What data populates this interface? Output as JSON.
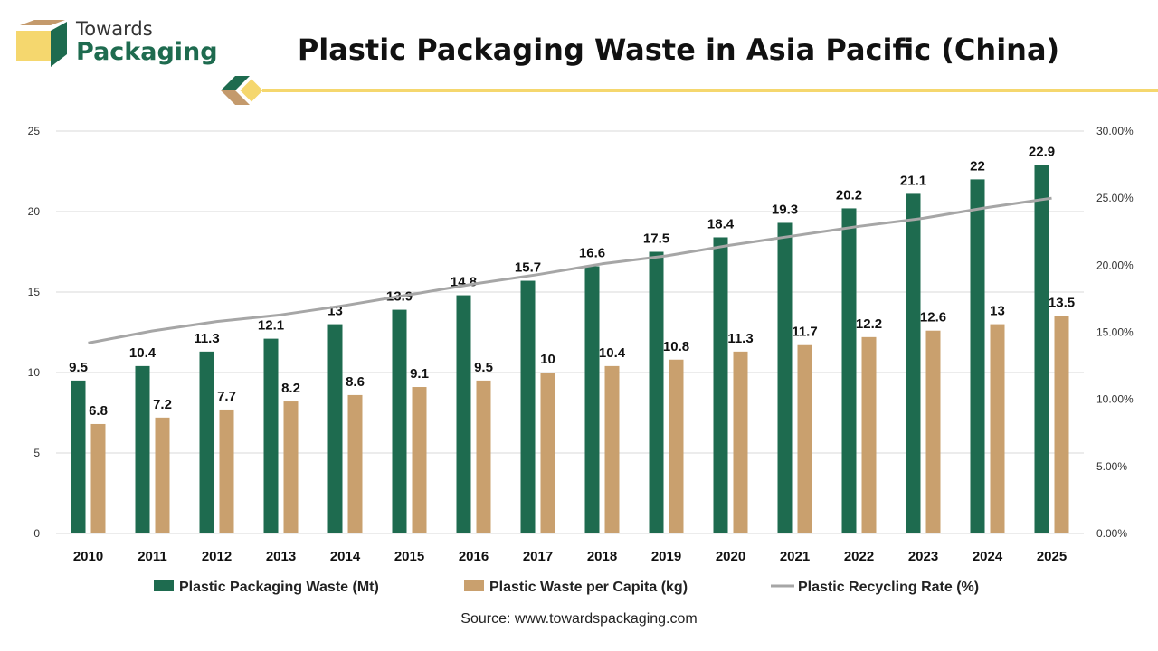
{
  "header": {
    "brand_line1": "Towards",
    "brand_line2": "Packaging",
    "title": "Plastic Packaging Waste in Asia Pacific (China)"
  },
  "colors": {
    "brand_green": "#1e6b4f",
    "brand_tan": "#c49a6c",
    "brand_yellow": "#f5d76e",
    "series_waste": "#1e6b4f",
    "series_capita": "#c9a06e",
    "series_rate": "#a6a6a6"
  },
  "source": "Source: www.towardspackaging.com",
  "chart_data": {
    "type": "bar",
    "categories": [
      "2010",
      "2011",
      "2012",
      "2013",
      "2014",
      "2015",
      "2016",
      "2017",
      "2018",
      "2019",
      "2020",
      "2021",
      "2022",
      "2023",
      "2024",
      "2025"
    ],
    "series": [
      {
        "name": "Plastic Packaging Waste (Mt)",
        "kind": "bar",
        "axis": "left",
        "color": "#1e6b4f",
        "values": [
          9.5,
          10.4,
          11.3,
          12.1,
          13,
          13.9,
          14.8,
          15.7,
          16.6,
          17.5,
          18.4,
          19.3,
          20.2,
          21.1,
          22,
          22.9
        ],
        "labels": [
          "9.5",
          "10.4",
          "11.3",
          "12.1",
          "13",
          "13.9",
          "14.8",
          "15.7",
          "16.6",
          "17.5",
          "18.4",
          "19.3",
          "20.2",
          "21.1",
          "22",
          "22.9"
        ]
      },
      {
        "name": "Plastic Waste per Capita (kg)",
        "kind": "bar",
        "axis": "left",
        "color": "#c9a06e",
        "values": [
          6.8,
          7.2,
          7.7,
          8.2,
          8.6,
          9.1,
          9.5,
          10,
          10.4,
          10.8,
          11.3,
          11.7,
          12.2,
          12.6,
          13,
          13.5
        ],
        "labels": [
          "6.8",
          "7.2",
          "7.7",
          "8.2",
          "8.6",
          "9.1",
          "9.5",
          "10",
          "10.4",
          "10.8",
          "11.3",
          "11.7",
          "12.2",
          "12.6",
          "13",
          "13.5"
        ]
      },
      {
        "name": "Plastic Recycling Rate (%)",
        "kind": "line",
        "axis": "right",
        "color": "#a6a6a6",
        "values": [
          14.2,
          15.1,
          15.8,
          16.3,
          17.0,
          17.8,
          18.6,
          19.3,
          20.1,
          20.7,
          21.5,
          22.2,
          22.9,
          23.5,
          24.3,
          25.0
        ]
      }
    ],
    "y_left": {
      "ylim": [
        0,
        25
      ],
      "ticks": [
        "0",
        "5",
        "10",
        "15",
        "20",
        "25"
      ],
      "tick_values": [
        0,
        5,
        10,
        15,
        20,
        25
      ]
    },
    "y_right": {
      "ylim": [
        0,
        30
      ],
      "ticks": [
        "0.00%",
        "5.00%",
        "10.00%",
        "15.00%",
        "20.00%",
        "25.00%",
        "30.00%"
      ],
      "tick_values": [
        0,
        5,
        10,
        15,
        20,
        25,
        30
      ]
    },
    "grid": true,
    "legend_position": "bottom"
  }
}
